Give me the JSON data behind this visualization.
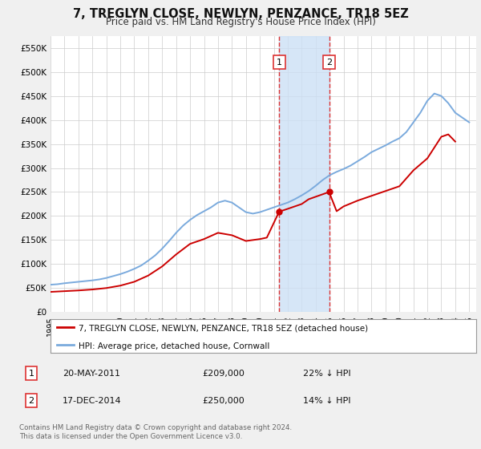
{
  "title": "7, TREGLYN CLOSE, NEWLYN, PENZANCE, TR18 5EZ",
  "subtitle": "Price paid vs. HM Land Registry's House Price Index (HPI)",
  "property_label": "7, TREGLYN CLOSE, NEWLYN, PENZANCE, TR18 5EZ (detached house)",
  "hpi_label": "HPI: Average price, detached house, Cornwall",
  "sale1_date": "20-MAY-2011",
  "sale1_price": "£209,000",
  "sale1_hpi": "22% ↓ HPI",
  "sale2_date": "17-DEC-2014",
  "sale2_price": "£250,000",
  "sale2_hpi": "14% ↓ HPI",
  "footer": "Contains HM Land Registry data © Crown copyright and database right 2024.\nThis data is licensed under the Open Government Licence v3.0.",
  "property_color": "#cc0000",
  "hpi_color": "#7aaadd",
  "shade_color": "#cce0f5",
  "dashed_color": "#dd3333",
  "ylim": [
    0,
    575000
  ],
  "yticks": [
    0,
    50000,
    100000,
    150000,
    200000,
    250000,
    300000,
    350000,
    400000,
    450000,
    500000,
    550000
  ],
  "background_color": "#f0f0f0",
  "plot_bg_color": "#ffffff",
  "hpi_years": [
    1995,
    1995.5,
    1996,
    1996.5,
    1997,
    1997.5,
    1998,
    1998.5,
    1999,
    1999.5,
    2000,
    2000.5,
    2001,
    2001.5,
    2002,
    2002.5,
    2003,
    2003.5,
    2004,
    2004.5,
    2005,
    2005.5,
    2006,
    2006.5,
    2007,
    2007.5,
    2008,
    2008.5,
    2009,
    2009.5,
    2010,
    2010.5,
    2011,
    2011.5,
    2012,
    2012.5,
    2013,
    2013.5,
    2014,
    2014.5,
    2015,
    2015.5,
    2016,
    2016.5,
    2017,
    2017.5,
    2018,
    2018.5,
    2019,
    2019.5,
    2020,
    2020.5,
    2021,
    2021.5,
    2022,
    2022.5,
    2023,
    2023.5,
    2024,
    2024.5,
    2025
  ],
  "hpi_values": [
    57000,
    58000,
    60000,
    61500,
    63000,
    64500,
    66000,
    68000,
    71000,
    75000,
    79000,
    84000,
    90000,
    97000,
    107000,
    118000,
    132000,
    148000,
    165000,
    180000,
    192000,
    202000,
    210000,
    218000,
    228000,
    232000,
    228000,
    218000,
    208000,
    205000,
    208000,
    213000,
    218000,
    223000,
    228000,
    235000,
    243000,
    252000,
    263000,
    275000,
    285000,
    292000,
    298000,
    305000,
    314000,
    323000,
    333000,
    340000,
    347000,
    355000,
    362000,
    375000,
    395000,
    415000,
    440000,
    455000,
    450000,
    435000,
    415000,
    405000,
    395000
  ],
  "prop_years": [
    1995,
    1996,
    1997,
    1998,
    1999,
    2000,
    2001,
    2002,
    2003,
    2004,
    2005,
    2006,
    2007,
    2008,
    2009,
    2010,
    2010.5,
    2011.38,
    2012,
    2013,
    2013.5,
    2014.96,
    2015.5,
    2016,
    2017,
    2018,
    2019,
    2020,
    2021,
    2022,
    2023,
    2023.5,
    2024
  ],
  "prop_values": [
    42000,
    43500,
    45000,
    47000,
    50000,
    55000,
    63000,
    76000,
    95000,
    120000,
    142000,
    152000,
    165000,
    160000,
    148000,
    152000,
    155000,
    209000,
    215000,
    225000,
    235000,
    250000,
    210000,
    220000,
    232000,
    242000,
    252000,
    262000,
    295000,
    320000,
    365000,
    370000,
    355000
  ],
  "sale1_x": 2011.38,
  "sale1_y": 209000,
  "sale2_x": 2014.96,
  "sale2_y": 250000,
  "shade_x1": 2011.38,
  "shade_x2": 2014.96,
  "xmin": 1995,
  "xmax": 2025.5
}
